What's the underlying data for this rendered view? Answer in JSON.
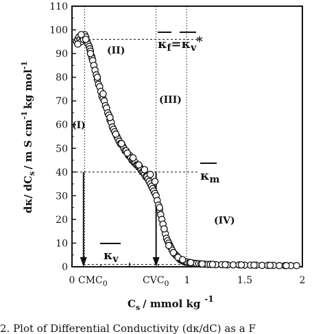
{
  "chart_data": {
    "type": "scatter",
    "title": "",
    "xlabel": "C",
    "xlabel_sub": "s",
    "xlabel_tail": "/ mmol kg",
    "xlabel_sup": "-1",
    "ylabel": "dκ/ dC",
    "ylabel_sub": "s",
    "ylabel_tail": "/ m S cm",
    "ylabel_sup1": "-1",
    "ylabel_mid": "kg mol",
    "ylabel_sup2": "-1",
    "xlim": [
      0,
      2
    ],
    "ylim": [
      0,
      110
    ],
    "x_ticks": [
      {
        "v": 0,
        "label": "0"
      },
      {
        "v": 0.5,
        "label": ""
      },
      {
        "v": 1,
        "label": "1"
      },
      {
        "v": 1.5,
        "label": "1.5"
      },
      {
        "v": 2,
        "label": "2"
      }
    ],
    "y_ticks": [
      0,
      10,
      20,
      30,
      40,
      50,
      60,
      70,
      80,
      90,
      100,
      110
    ],
    "regions": [
      "(I)",
      "(II)",
      "(III)",
      "(IV)"
    ],
    "cmc_label": "CMC",
    "cmc_sub": "0",
    "cvc_label": "CVC",
    "cvc_sub": "0",
    "kappa_f_label": "κ",
    "kappa_f_sub": "f",
    "kappa_f_eq": "=κ",
    "kappa_f_sub2": "v",
    "kappa_f_star": "*",
    "kappa_m_label": "κ",
    "kappa_m_sub": "m",
    "kappa_v_label": "κ",
    "kappa_v_sub": "v",
    "cmc_x": 0.1,
    "cvc_x": 0.73,
    "kappa_f_y": 96,
    "kappa_m_y": 40,
    "kappa_v_y": 1,
    "series": [
      {
        "x": [
          0.04,
          0.05,
          0.06,
          0.07,
          0.08,
          0.09,
          0.1,
          0.11,
          0.12,
          0.13,
          0.14,
          0.15,
          0.155,
          0.16,
          0.17,
          0.175,
          0.18,
          0.19,
          0.2,
          0.21,
          0.22,
          0.23,
          0.24,
          0.25,
          0.26,
          0.27,
          0.28,
          0.29,
          0.3,
          0.31,
          0.32,
          0.33,
          0.34,
          0.35,
          0.36,
          0.37,
          0.38,
          0.39,
          0.4,
          0.41,
          0.42,
          0.43,
          0.44,
          0.45,
          0.46,
          0.47,
          0.48,
          0.49,
          0.5,
          0.51,
          0.52,
          0.53,
          0.54,
          0.55,
          0.56,
          0.57,
          0.58,
          0.59,
          0.6,
          0.61,
          0.62,
          0.63,
          0.64,
          0.65,
          0.66,
          0.67,
          0.68,
          0.69,
          0.7,
          0.71,
          0.72,
          0.73,
          0.74,
          0.75,
          0.76,
          0.77,
          0.78,
          0.79,
          0.8,
          0.81,
          0.82,
          0.83,
          0.84,
          0.85,
          0.86,
          0.87,
          0.88,
          0.89,
          0.9,
          0.91,
          0.92,
          0.93,
          0.94,
          0.95,
          0.96,
          0.97,
          0.98,
          0.99,
          1.0,
          1.02,
          1.04,
          1.06,
          1.08,
          1.1,
          1.12,
          1.15,
          1.18,
          1.2,
          1.25,
          1.3,
          1.35,
          1.4,
          1.45,
          1.5,
          1.55,
          1.6,
          1.65,
          1.7,
          1.75,
          1.8,
          1.85,
          1.9,
          1.95,
          0.05,
          0.08,
          0.12,
          0.16,
          0.22,
          0.27,
          0.33,
          0.38,
          0.43,
          0.48,
          0.53,
          0.58,
          0.63,
          0.68,
          0.72,
          0.76,
          0.8,
          0.84,
          0.88,
          0.92,
          0.96,
          1.03,
          1.13,
          1.22,
          1.33,
          1.47,
          1.58,
          1.72,
          1.86
        ],
        "y": [
          95,
          96,
          97,
          96,
          95,
          97,
          96,
          98,
          97,
          95,
          94,
          93,
          92,
          91,
          89,
          88,
          87,
          85,
          83,
          81,
          79,
          77,
          76,
          74,
          72,
          71,
          70,
          68,
          67,
          65,
          64,
          62,
          61,
          59,
          58,
          57,
          56,
          55,
          54,
          53,
          52,
          52,
          51,
          50,
          49,
          49,
          48,
          47,
          47,
          46,
          45,
          45,
          44,
          44,
          43,
          43,
          42,
          42,
          41,
          40,
          40,
          39,
          38,
          38,
          37,
          36,
          35,
          34,
          33,
          32,
          31,
          30,
          28,
          26,
          24,
          22,
          20,
          18,
          16,
          14,
          12,
          11,
          10,
          9,
          8,
          7,
          6,
          5.5,
          5,
          4.5,
          4,
          3.5,
          3,
          3,
          2.5,
          2.5,
          2,
          2,
          2,
          1.8,
          1.6,
          1.5,
          1.4,
          1.3,
          1.2,
          1.1,
          1.0,
          1.0,
          0.9,
          0.9,
          0.8,
          0.8,
          0.8,
          0.7,
          0.7,
          0.7,
          0.6,
          0.6,
          0.6,
          0.5,
          0.5,
          0.5,
          0.5,
          94,
          98,
          96,
          90,
          80,
          73,
          63,
          56,
          52,
          48,
          46,
          43,
          41,
          39,
          36,
          25,
          16,
          9,
          6,
          4,
          3,
          1.8,
          1.2,
          1.0,
          0.9,
          0.8,
          0.7,
          0.6,
          0.5
        ]
      }
    ]
  },
  "caption": "2.   Plot of Differential Conductivity (dκ/dC) as a F"
}
